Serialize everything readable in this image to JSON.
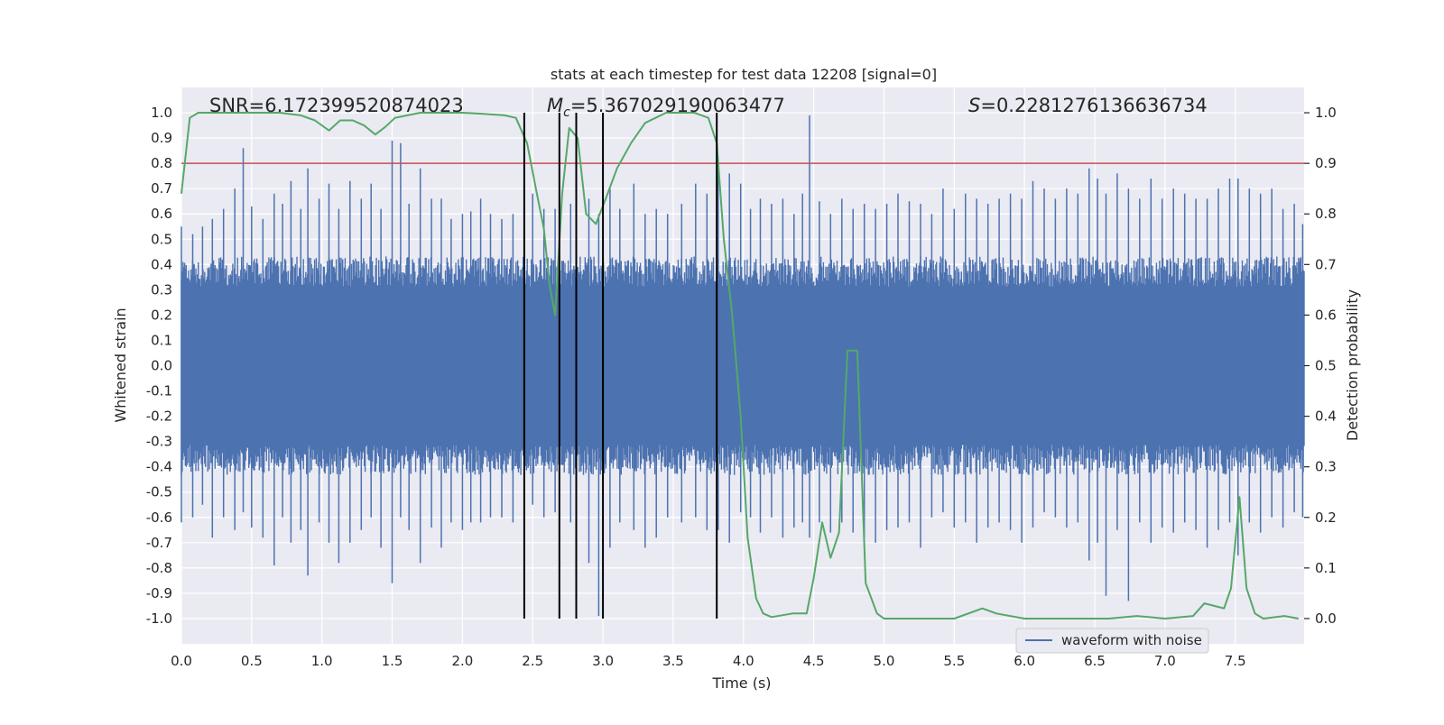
{
  "chart_data": {
    "type": "line",
    "title": "stats at each timestep for test data 12208 [signal=0]",
    "xlabel": "Time (s)",
    "ylabel": "Whitened strain",
    "y2label": "Detection probability",
    "xlim": [
      0.0,
      7.99
    ],
    "ylim": [
      -1.1,
      1.1
    ],
    "y2lim": [
      -0.05,
      1.05
    ],
    "x_ticks": [
      "0.0",
      "0.5",
      "1.0",
      "1.5",
      "2.0",
      "2.5",
      "3.0",
      "3.5",
      "4.0",
      "4.5",
      "5.0",
      "5.5",
      "6.0",
      "6.5",
      "7.0",
      "7.5"
    ],
    "y_ticks": [
      "1.0",
      "0.9",
      "0.8",
      "0.7",
      "0.6",
      "0.5",
      "0.4",
      "0.3",
      "0.2",
      "0.1",
      "0.0",
      "-0.1",
      "-0.2",
      "-0.3",
      "-0.4",
      "-0.5",
      "-0.6",
      "-0.7",
      "-0.8",
      "-0.9",
      "-1.0"
    ],
    "y2_ticks": [
      "1.0",
      "0.9",
      "0.8",
      "0.7",
      "0.6",
      "0.5",
      "0.4",
      "0.3",
      "0.2",
      "0.1",
      "0.0"
    ],
    "grid": true,
    "annotations": {
      "snr_text": "SNR=6.172399520874023",
      "mc_symbol": "M",
      "mc_sub": "c",
      "mc_value": "=5.367029190063477",
      "s_symbol": "S",
      "s_value": "=0.2281276136636734"
    },
    "legend": {
      "entries": [
        "waveform with noise"
      ],
      "placement": "lower-right"
    },
    "threshold": {
      "y2": 0.9
    },
    "event_markers": [
      2.44,
      2.69,
      2.81,
      3.0,
      3.81
    ],
    "series": [
      {
        "name": "waveform with noise",
        "axis": "left",
        "kind": "noise-envelope",
        "typical_amplitude": 0.4,
        "spikes": [
          [
            0.0,
            0.55,
            -0.62
          ],
          [
            0.08,
            0.52,
            -0.6
          ],
          [
            0.15,
            0.55,
            -0.55
          ],
          [
            0.22,
            0.58,
            -0.68
          ],
          [
            0.3,
            0.62,
            -0.6
          ],
          [
            0.38,
            0.7,
            -0.65
          ],
          [
            0.44,
            0.86,
            -0.58
          ],
          [
            0.5,
            0.63,
            -0.64
          ],
          [
            0.58,
            0.58,
            -0.68
          ],
          [
            0.66,
            0.68,
            -0.79
          ],
          [
            0.72,
            0.64,
            -0.6
          ],
          [
            0.78,
            0.73,
            -0.7
          ],
          [
            0.85,
            0.62,
            -0.65
          ],
          [
            0.9,
            0.78,
            -0.83
          ],
          [
            0.98,
            0.66,
            -0.62
          ],
          [
            1.05,
            0.72,
            -0.7
          ],
          [
            1.12,
            0.62,
            -0.78
          ],
          [
            1.2,
            0.73,
            -0.7
          ],
          [
            1.28,
            0.66,
            -0.65
          ],
          [
            1.35,
            0.72,
            -0.6
          ],
          [
            1.42,
            0.62,
            -0.72
          ],
          [
            1.5,
            0.89,
            -0.86
          ],
          [
            1.56,
            0.88,
            -0.6
          ],
          [
            1.62,
            0.64,
            -0.65
          ],
          [
            1.7,
            0.78,
            -0.78
          ],
          [
            1.78,
            0.66,
            -0.64
          ],
          [
            1.85,
            0.66,
            -0.72
          ],
          [
            1.92,
            0.58,
            -0.62
          ],
          [
            2.0,
            0.6,
            -0.65
          ],
          [
            2.06,
            0.61,
            -0.62
          ],
          [
            2.13,
            0.66,
            -0.62
          ],
          [
            2.2,
            0.6,
            -0.6
          ],
          [
            2.28,
            0.58,
            -0.6
          ],
          [
            2.36,
            0.6,
            -0.62
          ],
          [
            2.5,
            0.68,
            -0.55
          ],
          [
            2.58,
            0.62,
            -0.6
          ],
          [
            2.66,
            0.62,
            -0.58
          ],
          [
            2.77,
            0.64,
            -0.62
          ],
          [
            2.9,
            0.66,
            -0.78
          ],
          [
            2.97,
            0.6,
            -0.99
          ],
          [
            3.05,
            0.7,
            -0.72
          ],
          [
            3.12,
            0.62,
            -0.62
          ],
          [
            3.22,
            0.72,
            -0.65
          ],
          [
            3.3,
            0.6,
            -0.72
          ],
          [
            3.38,
            0.62,
            -0.68
          ],
          [
            3.46,
            0.6,
            -0.6
          ],
          [
            3.56,
            0.64,
            -0.62
          ],
          [
            3.66,
            0.72,
            -0.6
          ],
          [
            3.74,
            0.68,
            -0.65
          ],
          [
            3.82,
            0.78,
            -0.65
          ],
          [
            3.9,
            0.76,
            -0.7
          ],
          [
            3.98,
            0.72,
            -0.58
          ],
          [
            4.05,
            0.62,
            -0.6
          ],
          [
            4.12,
            0.66,
            -0.66
          ],
          [
            4.2,
            0.64,
            -0.6
          ],
          [
            4.28,
            0.66,
            -0.68
          ],
          [
            4.36,
            0.6,
            -0.64
          ],
          [
            4.42,
            0.68,
            -0.62
          ],
          [
            4.47,
            0.99,
            -0.68
          ],
          [
            4.54,
            0.65,
            -0.62
          ],
          [
            4.62,
            0.6,
            -0.66
          ],
          [
            4.7,
            0.66,
            -0.62
          ],
          [
            4.78,
            0.62,
            -0.66
          ],
          [
            4.86,
            0.64,
            -0.68
          ],
          [
            4.94,
            0.62,
            -0.7
          ],
          [
            5.02,
            0.64,
            -0.65
          ],
          [
            5.1,
            0.68,
            -0.64
          ],
          [
            5.18,
            0.65,
            -0.62
          ],
          [
            5.26,
            0.64,
            -0.72
          ],
          [
            5.34,
            0.6,
            -0.6
          ],
          [
            5.42,
            0.7,
            -0.58
          ],
          [
            5.5,
            0.62,
            -0.64
          ],
          [
            5.58,
            0.68,
            -0.62
          ],
          [
            5.66,
            0.66,
            -0.7
          ],
          [
            5.74,
            0.64,
            -0.64
          ],
          [
            5.82,
            0.66,
            -0.62
          ],
          [
            5.9,
            0.68,
            -0.65
          ],
          [
            5.98,
            0.66,
            -0.7
          ],
          [
            6.06,
            0.73,
            -0.64
          ],
          [
            6.14,
            0.7,
            -0.58
          ],
          [
            6.22,
            0.66,
            -0.6
          ],
          [
            6.3,
            0.7,
            -0.64
          ],
          [
            6.38,
            0.68,
            -0.62
          ],
          [
            6.46,
            0.78,
            -0.77
          ],
          [
            6.52,
            0.74,
            -0.7
          ],
          [
            6.58,
            0.68,
            -0.91
          ],
          [
            6.66,
            0.76,
            -0.65
          ],
          [
            6.74,
            0.7,
            -0.93
          ],
          [
            6.82,
            0.66,
            -0.62
          ],
          [
            6.9,
            0.74,
            -0.7
          ],
          [
            6.98,
            0.66,
            -0.64
          ],
          [
            7.06,
            0.7,
            -0.66
          ],
          [
            7.14,
            0.68,
            -0.62
          ],
          [
            7.22,
            0.66,
            -0.65
          ],
          [
            7.3,
            0.66,
            -0.72
          ],
          [
            7.38,
            0.7,
            -0.65
          ],
          [
            7.46,
            0.74,
            -0.62
          ],
          [
            7.52,
            0.74,
            -0.75
          ],
          [
            7.6,
            0.7,
            -0.62
          ],
          [
            7.68,
            0.68,
            -0.66
          ],
          [
            7.76,
            0.7,
            -0.6
          ],
          [
            7.84,
            0.62,
            -0.64
          ],
          [
            7.92,
            0.64,
            -0.58
          ],
          [
            7.98,
            0.56,
            -0.6
          ]
        ]
      },
      {
        "axis": "right",
        "kind": "line",
        "points": [
          [
            0.0,
            0.84
          ],
          [
            0.06,
            0.99
          ],
          [
            0.12,
            1.0
          ],
          [
            0.3,
            1.0
          ],
          [
            0.5,
            1.0
          ],
          [
            0.7,
            1.0
          ],
          [
            0.85,
            0.995
          ],
          [
            0.95,
            0.985
          ],
          [
            1.05,
            0.965
          ],
          [
            1.13,
            0.985
          ],
          [
            1.22,
            0.985
          ],
          [
            1.3,
            0.975
          ],
          [
            1.38,
            0.957
          ],
          [
            1.45,
            0.972
          ],
          [
            1.52,
            0.99
          ],
          [
            1.7,
            1.0
          ],
          [
            2.0,
            1.0
          ],
          [
            2.15,
            0.998
          ],
          [
            2.3,
            0.995
          ],
          [
            2.38,
            0.99
          ],
          [
            2.46,
            0.94
          ],
          [
            2.53,
            0.84
          ],
          [
            2.58,
            0.77
          ],
          [
            2.62,
            0.66
          ],
          [
            2.66,
            0.6
          ],
          [
            2.71,
            0.84
          ],
          [
            2.76,
            0.97
          ],
          [
            2.82,
            0.95
          ],
          [
            2.88,
            0.8
          ],
          [
            2.95,
            0.78
          ],
          [
            3.02,
            0.83
          ],
          [
            3.1,
            0.89
          ],
          [
            3.2,
            0.94
          ],
          [
            3.3,
            0.98
          ],
          [
            3.45,
            1.0
          ],
          [
            3.65,
            1.0
          ],
          [
            3.75,
            0.99
          ],
          [
            3.81,
            0.94
          ],
          [
            3.86,
            0.75
          ],
          [
            3.92,
            0.6
          ],
          [
            3.98,
            0.4
          ],
          [
            4.03,
            0.16
          ],
          [
            4.09,
            0.04
          ],
          [
            4.14,
            0.01
          ],
          [
            4.2,
            0.003
          ],
          [
            4.35,
            0.01
          ],
          [
            4.45,
            0.01
          ],
          [
            4.5,
            0.08
          ],
          [
            4.56,
            0.19
          ],
          [
            4.62,
            0.12
          ],
          [
            4.68,
            0.17
          ],
          [
            4.74,
            0.53
          ],
          [
            4.81,
            0.53
          ],
          [
            4.87,
            0.07
          ],
          [
            4.95,
            0.01
          ],
          [
            5.0,
            0.0
          ],
          [
            5.5,
            0.0
          ],
          [
            5.7,
            0.02
          ],
          [
            5.8,
            0.01
          ],
          [
            6.0,
            0.0
          ],
          [
            6.3,
            0.0
          ],
          [
            6.6,
            0.0
          ],
          [
            6.8,
            0.005
          ],
          [
            7.0,
            0.0
          ],
          [
            7.2,
            0.005
          ],
          [
            7.28,
            0.03
          ],
          [
            7.35,
            0.025
          ],
          [
            7.42,
            0.02
          ],
          [
            7.47,
            0.06
          ],
          [
            7.53,
            0.24
          ],
          [
            7.58,
            0.06
          ],
          [
            7.64,
            0.01
          ],
          [
            7.7,
            0.0
          ],
          [
            7.85,
            0.005
          ],
          [
            7.95,
            0.0
          ]
        ]
      }
    ]
  },
  "colors": {
    "axes_bg": "#eaeaf2",
    "grid": "#ffffff",
    "waveform": "#4c72b0",
    "probability": "#55a868",
    "threshold": "#c44e52",
    "markers": "#000000"
  }
}
